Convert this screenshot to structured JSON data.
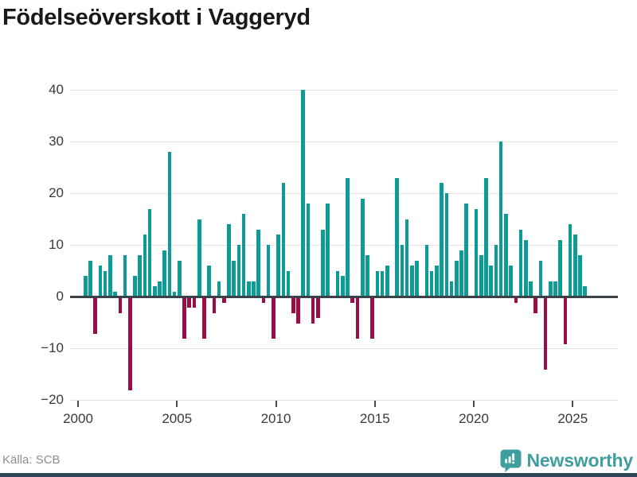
{
  "title": "Födelseöverskott i Vaggeryd",
  "footer": {
    "source": "Källa: SCB",
    "brand": "Newsworthy"
  },
  "colors": {
    "positive_bar": "#0D9B96",
    "negative_bar": "#9E0C45",
    "brand_teal": "#3F9FA0",
    "axis_line": "#3A4149",
    "gridline": "#E3E3E3",
    "tick_text": "#3A3A3A",
    "source_text": "#8F8F8F",
    "footer_strip": "#2E4756"
  },
  "chart_data": {
    "type": "bar",
    "title": "Födelseöverskott i Vaggeryd",
    "frequency": "quarterly",
    "start": "2000-Q2",
    "end": "2025-Q3",
    "values": [
      4,
      7,
      -7,
      6,
      5,
      8,
      1,
      -3,
      8,
      -18,
      4,
      8,
      12,
      17,
      2,
      3,
      9,
      28,
      1,
      7,
      -8,
      -2,
      -2,
      15,
      -8,
      6,
      -3,
      3,
      -1,
      14,
      7,
      10,
      16,
      3,
      3,
      13,
      -1,
      10,
      -8,
      12,
      22,
      5,
      -3,
      -5,
      40,
      18,
      -5,
      -4,
      13,
      18,
      0,
      5,
      4,
      23,
      -1,
      -8,
      19,
      8,
      -8,
      5,
      5,
      6,
      0,
      23,
      10,
      15,
      6,
      7,
      0,
      10,
      5,
      6,
      22,
      20,
      3,
      7,
      9,
      18,
      0,
      17,
      8,
      23,
      6,
      10,
      30,
      16,
      6,
      -1,
      13,
      11,
      3,
      -3,
      7,
      -14,
      3,
      3,
      11,
      -9,
      14,
      12,
      8,
      2
    ],
    "ylim": [
      -20,
      40
    ],
    "y_ticks": [
      40,
      30,
      20,
      10,
      0,
      -10,
      -20
    ],
    "x_ticks": [
      2000,
      2005,
      2010,
      2015,
      2020,
      2025
    ],
    "grid": true,
    "legend": false,
    "bar_colors": {
      "positive": "#0D9B96",
      "negative": "#9E0C45"
    }
  }
}
